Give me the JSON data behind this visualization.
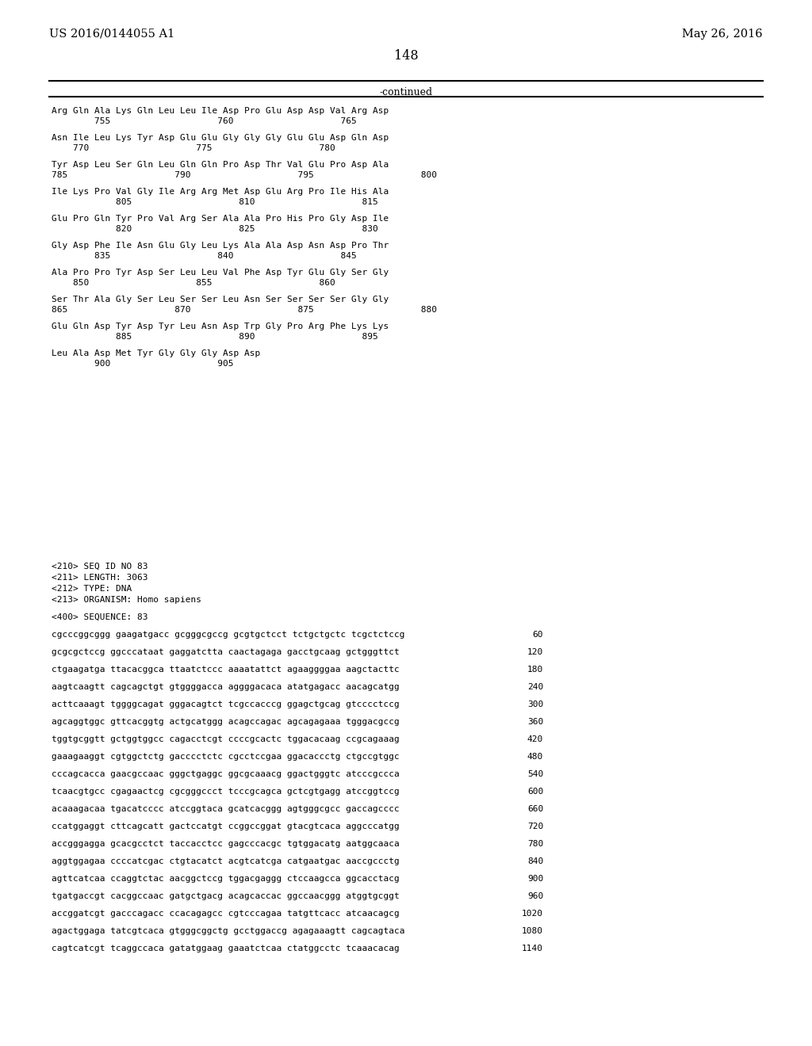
{
  "header_left": "US 2016/0144055 A1",
  "header_right": "May 26, 2016",
  "page_number": "148",
  "continued_text": "-continued",
  "background_color": "#ffffff",
  "text_color": "#000000",
  "prot_blocks": [
    {
      "seq": "Arg Gln Ala Lys Gln Leu Leu Ile Asp Pro Glu Asp Asp Val Arg Asp",
      "nums": "        755                    760                    765"
    },
    {
      "seq": "Asn Ile Leu Lys Tyr Asp Glu Glu Gly Gly Gly Glu Glu Asp Gln Asp",
      "nums": "    770                    775                    780"
    },
    {
      "seq": "Tyr Asp Leu Ser Gln Leu Gln Gln Pro Asp Thr Val Glu Pro Asp Ala",
      "nums": "785                    790                    795                    800"
    },
    {
      "seq": "Ile Lys Pro Val Gly Ile Arg Arg Met Asp Glu Arg Pro Ile His Ala",
      "nums": "            805                    810                    815"
    },
    {
      "seq": "Glu Pro Gln Tyr Pro Val Arg Ser Ala Ala Pro His Pro Gly Asp Ile",
      "nums": "            820                    825                    830"
    },
    {
      "seq": "Gly Asp Phe Ile Asn Glu Gly Leu Lys Ala Ala Asp Asn Asp Pro Thr",
      "nums": "        835                    840                    845"
    },
    {
      "seq": "Ala Pro Pro Tyr Asp Ser Leu Leu Val Phe Asp Tyr Glu Gly Ser Gly",
      "nums": "    850                    855                    860"
    },
    {
      "seq": "Ser Thr Ala Gly Ser Leu Ser Ser Leu Asn Ser Ser Ser Ser Gly Gly",
      "nums": "865                    870                    875                    880"
    },
    {
      "seq": "Glu Gln Asp Tyr Asp Tyr Leu Asn Asp Trp Gly Pro Arg Phe Lys Lys",
      "nums": "            885                    890                    895"
    },
    {
      "seq": "Leu Ala Asp Met Tyr Gly Gly Gly Asp Asp",
      "nums": "        900                    905"
    }
  ],
  "seq_info_lines": [
    "<210> SEQ ID NO 83",
    "<211> LENGTH: 3063",
    "<212> TYPE: DNA",
    "<213> ORGANISM: Homo sapiens"
  ],
  "seq_label": "<400> SEQUENCE: 83",
  "dna_lines": [
    [
      "cgcccggcggg gaagatgacc gcgggcgccg gcgtgctcct tctgctgctc tcgctctccg",
      "60"
    ],
    [
      "gcgcgctccg ggcccataat gaggatctta caactagaga gacctgcaag gctgggttct",
      "120"
    ],
    [
      "ctgaagatga ttacacggca ttaatctccc aaaatattct agaaggggaa aagctacttc",
      "180"
    ],
    [
      "aagtcaagtt cagcagctgt gtggggacca aggggacaca atatgagacc aacagcatgg",
      "240"
    ],
    [
      "acttcaaagt tggggcagat gggacagtct tcgccacccg ggagctgcag gtcccctccg",
      "300"
    ],
    [
      "agcaggtggc gttcacggtg actgcatggg acagccagac agcagagaaa tgggacgccg",
      "360"
    ],
    [
      "tggtgcggtt gctggtggcc cagacctcgt ccccgcactc tggacacaag ccgcagaaag",
      "420"
    ],
    [
      "gaaagaaggt cgtggctctg gacccctctc cgcctccgaa ggacaccctg ctgccgtggc",
      "480"
    ],
    [
      "cccagcacca gaacgccaac gggctgaggc ggcgcaaacg ggactgggtc atcccgccca",
      "540"
    ],
    [
      "tcaacgtgcc cgagaactcg cgcgggccct tcccgcagca gctcgtgagg atccggtccg",
      "600"
    ],
    [
      "acaaagacaa tgacatcccc atccggtaca gcatcacggg agtgggcgcc gaccagcccc",
      "660"
    ],
    [
      "ccatggaggt cttcagcatt gactccatgt ccggccggat gtacgtcaca aggcccatgg",
      "720"
    ],
    [
      "accgggagga gcacgcctct taccacctcc gagcccacgc tgtggacatg aatggcaaca",
      "780"
    ],
    [
      "aggtggagaa ccccatcgac ctgtacatct acgtcatcga catgaatgac aaccgccctg",
      "840"
    ],
    [
      "agttcatcaa ccaggtctac aacggctccg tggacgaggg ctccaagcca ggcacctacg",
      "900"
    ],
    [
      "tgatgaccgt cacggccaac gatgctgacg acagcaccac ggccaacggg atggtgcggt",
      "960"
    ],
    [
      "accggatcgt gacccagacc ccacagagcc cgtcccagaa tatgttcacc atcaacagcg",
      "1020"
    ],
    [
      "agactggaga tatcgtcaca gtgggcggctg gcctggaccg agagaaagtt cagcagtaca",
      "1080"
    ],
    [
      "cagtcatcgt tcaggccaca gatatggaag gaaatctcaa ctatggcctc tcaaacacag",
      "1140"
    ]
  ]
}
